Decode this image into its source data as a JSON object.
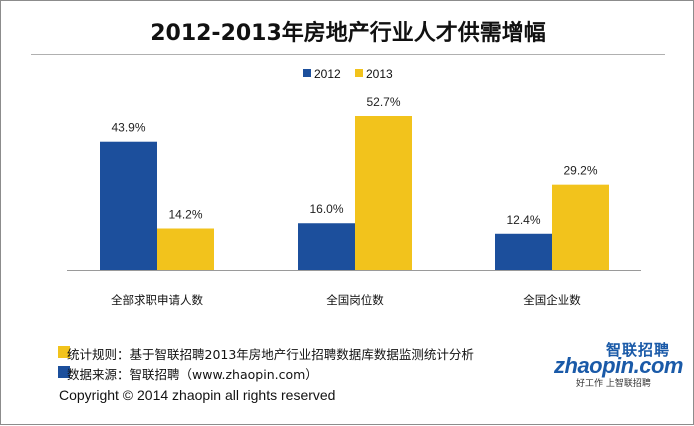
{
  "chart_data": {
    "type": "bar",
    "title": "2012-2013年房地产行业人才供需增幅",
    "categories": [
      "全部求职申请人数",
      "全国岗位数",
      "全国企业数"
    ],
    "series": [
      {
        "name": "2012",
        "values": [
          43.9,
          16.0,
          12.4
        ],
        "labels": [
          "43.9%",
          "16.0%",
          "12.4%"
        ],
        "color": "#1c4f9c"
      },
      {
        "name": "2013",
        "values": [
          14.2,
          52.7,
          29.2
        ],
        "labels": [
          "14.2%",
          "52.7%",
          "29.2%"
        ],
        "color": "#f2c31c"
      }
    ],
    "ylim": [
      0,
      60
    ],
    "grid": false,
    "legend_position": "top-center"
  },
  "notes": [
    {
      "text": "统计规则：基于智联招聘2013年房地产行业招聘数据库数据监测统计分析",
      "color": "#f2c31c"
    },
    {
      "text": "数据来源：智联招聘（www.zhaopin.com）",
      "color": "#1c4f9c"
    }
  ],
  "copyright": "Copyright  ©  2014 zhaopin all rights reserved",
  "logo": {
    "chinese": "智联招聘",
    "main": "zhaopin.com",
    "slogan": "好工作  上智联招聘"
  }
}
